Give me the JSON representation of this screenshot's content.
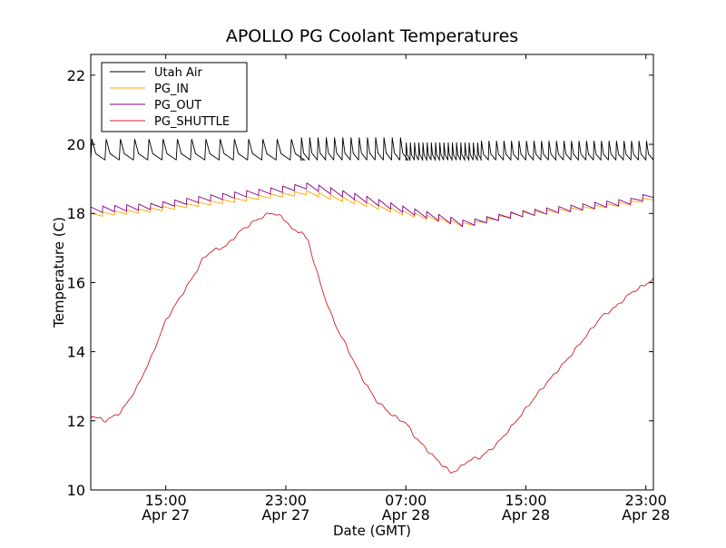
{
  "chart_data": {
    "type": "line",
    "title": "APOLLO PG Coolant Temperatures",
    "xlabel": "Date (GMT)",
    "ylabel": "Temperature (C)",
    "ylim": [
      10,
      22.6
    ],
    "xlim_hours": [
      10.0,
      47.5
    ],
    "x_unit": "hours since Apr 27 00:00 GMT",
    "yticks": [
      10,
      12,
      14,
      16,
      18,
      20,
      22
    ],
    "xticks": [
      {
        "hour": 15,
        "time": "15:00",
        "date": "Apr 27"
      },
      {
        "hour": 23,
        "time": "23:00",
        "date": "Apr 27"
      },
      {
        "hour": 31,
        "time": "07:00",
        "date": "Apr 28"
      },
      {
        "hour": 39,
        "time": "15:00",
        "date": "Apr 28"
      },
      {
        "hour": 47,
        "time": "23:00",
        "date": "Apr 28"
      }
    ],
    "legend_position": "upper-left",
    "series": [
      {
        "name": "Utah Air",
        "color": "#000000",
        "style": "sawtooth",
        "hours": [
          10.0,
          47.5
        ],
        "base": 19.55,
        "peaks": [
          {
            "range": [
              10.0,
              24.0
            ],
            "period": 0.95,
            "peak": 20.15
          },
          {
            "range": [
              24.0,
              31.0
            ],
            "period": 0.55,
            "peak": 20.2
          },
          {
            "range": [
              31.0,
              36.0
            ],
            "period": 0.28,
            "peak": 20.05
          },
          {
            "range": [
              36.0,
              47.5
            ],
            "period": 0.5,
            "peak": 20.1
          }
        ]
      },
      {
        "name": "PG_IN",
        "color": "#ffa500",
        "style": "sawtooth",
        "period": 0.8,
        "amplitude": 0.12,
        "x": [
          10.0,
          14.0,
          18.0,
          22.0,
          24.5,
          28.0,
          31.0,
          33.5,
          35.0,
          38.0,
          42.0,
          46.0,
          47.5
        ],
        "values": [
          17.95,
          18.1,
          18.3,
          18.5,
          18.6,
          18.3,
          18.0,
          17.8,
          17.65,
          17.95,
          18.1,
          18.3,
          18.45
        ]
      },
      {
        "name": "PG_OUT",
        "color": "#800080",
        "style": "sawtooth",
        "period": 0.8,
        "amplitude": 0.18,
        "x": [
          10.0,
          14.0,
          18.0,
          22.0,
          24.5,
          28.0,
          31.0,
          33.5,
          35.0,
          38.0,
          42.0,
          46.0,
          47.5
        ],
        "values": [
          18.1,
          18.2,
          18.45,
          18.65,
          18.8,
          18.45,
          18.1,
          17.85,
          17.7,
          17.95,
          18.15,
          18.35,
          18.55
        ]
      },
      {
        "name": "PG_SHUTTLE",
        "color": "#d02020",
        "style": "smooth",
        "x": [
          10.0,
          11.0,
          12.0,
          13.0,
          14.0,
          15.0,
          16.0,
          17.0,
          17.5,
          18.0,
          19.0,
          20.0,
          21.0,
          22.0,
          22.5,
          23.0,
          23.5,
          24.0,
          24.5,
          25.0,
          25.5,
          26.0,
          26.5,
          27.0,
          28.0,
          29.0,
          30.0,
          30.5,
          31.0,
          31.5,
          32.0,
          33.0,
          34.0,
          34.5,
          35.0,
          35.5,
          36.0,
          37.0,
          38.0,
          39.0,
          40.0,
          41.0,
          42.0,
          43.0,
          44.0,
          45.0,
          46.0,
          47.0,
          47.5
        ],
        "values": [
          12.15,
          12.0,
          12.25,
          12.9,
          13.8,
          14.9,
          15.6,
          16.3,
          16.7,
          16.9,
          17.05,
          17.5,
          17.8,
          18.02,
          17.95,
          17.8,
          17.5,
          17.48,
          17.2,
          16.4,
          15.7,
          15.1,
          14.6,
          14.2,
          13.3,
          12.6,
          12.2,
          12.05,
          11.95,
          11.6,
          11.35,
          10.9,
          10.5,
          10.6,
          10.8,
          10.9,
          10.95,
          11.3,
          11.8,
          12.35,
          12.9,
          13.4,
          13.9,
          14.45,
          15.0,
          15.3,
          15.7,
          15.95,
          16.1
        ]
      }
    ]
  }
}
